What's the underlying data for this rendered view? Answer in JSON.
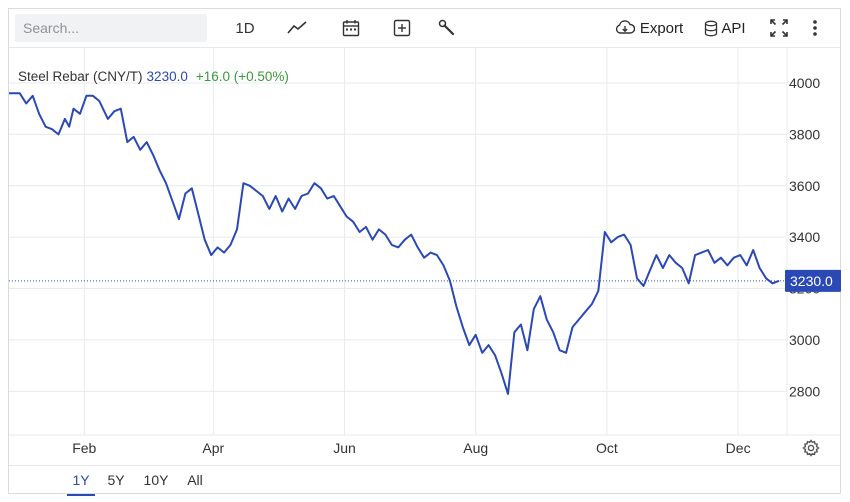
{
  "toolbar": {
    "search_placeholder": "Search...",
    "interval_label": "1D",
    "export_label": "Export",
    "api_label": "API",
    "icons": [
      "line-chart-icon",
      "calendar-icon",
      "plus-square-icon",
      "wrench-icon",
      "cloud-download-icon",
      "database-icon",
      "fullscreen-icon",
      "more-vertical-icon"
    ]
  },
  "legend": {
    "name": "Steel Rebar (CNY/T)",
    "price": "3230.0",
    "change": "+16.0 (+0.50%)"
  },
  "price_tag": "3230.0",
  "ranges": [
    "1Y",
    "5Y",
    "10Y",
    "All"
  ],
  "active_range": "1Y",
  "colors": {
    "line": "#2b49b5",
    "up": "#3a9a3a",
    "grid": "#e8eaee"
  },
  "chart_data": {
    "type": "line",
    "title": "Steel Rebar (CNY/T)",
    "xlabel": "",
    "ylabel": "",
    "grid": true,
    "y_axis_position": "right",
    "ylim": [
      2630,
      4140
    ],
    "yticks": [
      2800,
      3000,
      3200,
      3400,
      3600,
      3800,
      4000
    ],
    "xlim": [
      "2023-12-28",
      "2024-12-20"
    ],
    "xticks": [
      {
        "label": "Feb",
        "date": "2024-02-01"
      },
      {
        "label": "Apr",
        "date": "2024-04-01"
      },
      {
        "label": "Jun",
        "date": "2024-06-01"
      },
      {
        "label": "Aug",
        "date": "2024-08-01"
      },
      {
        "label": "Oct",
        "date": "2024-10-01"
      },
      {
        "label": "Dec",
        "date": "2024-12-01"
      }
    ],
    "last_value": 3230.0,
    "series": [
      {
        "name": "Steel Rebar (CNY/T)",
        "points": [
          [
            "2023-12-28",
            3960
          ],
          [
            "2024-01-02",
            3960
          ],
          [
            "2024-01-05",
            3920
          ],
          [
            "2024-01-08",
            3950
          ],
          [
            "2024-01-11",
            3880
          ],
          [
            "2024-01-14",
            3830
          ],
          [
            "2024-01-17",
            3820
          ],
          [
            "2024-01-20",
            3800
          ],
          [
            "2024-01-23",
            3860
          ],
          [
            "2024-01-25",
            3830
          ],
          [
            "2024-01-27",
            3900
          ],
          [
            "2024-01-30",
            3880
          ],
          [
            "2024-02-02",
            3950
          ],
          [
            "2024-02-05",
            3950
          ],
          [
            "2024-02-08",
            3930
          ],
          [
            "2024-02-12",
            3860
          ],
          [
            "2024-02-15",
            3890
          ],
          [
            "2024-02-18",
            3900
          ],
          [
            "2024-02-21",
            3770
          ],
          [
            "2024-02-24",
            3790
          ],
          [
            "2024-02-27",
            3740
          ],
          [
            "2024-03-01",
            3770
          ],
          [
            "2024-03-04",
            3720
          ],
          [
            "2024-03-07",
            3660
          ],
          [
            "2024-03-10",
            3610
          ],
          [
            "2024-03-13",
            3540
          ],
          [
            "2024-03-16",
            3470
          ],
          [
            "2024-03-19",
            3570
          ],
          [
            "2024-03-22",
            3590
          ],
          [
            "2024-03-25",
            3490
          ],
          [
            "2024-03-28",
            3390
          ],
          [
            "2024-03-31",
            3330
          ],
          [
            "2024-04-03",
            3360
          ],
          [
            "2024-04-06",
            3340
          ],
          [
            "2024-04-09",
            3370
          ],
          [
            "2024-04-12",
            3430
          ],
          [
            "2024-04-15",
            3610
          ],
          [
            "2024-04-18",
            3600
          ],
          [
            "2024-04-21",
            3580
          ],
          [
            "2024-04-24",
            3560
          ],
          [
            "2024-04-27",
            3510
          ],
          [
            "2024-04-30",
            3560
          ],
          [
            "2024-05-03",
            3500
          ],
          [
            "2024-05-06",
            3550
          ],
          [
            "2024-05-09",
            3510
          ],
          [
            "2024-05-12",
            3560
          ],
          [
            "2024-05-15",
            3570
          ],
          [
            "2024-05-18",
            3610
          ],
          [
            "2024-05-21",
            3590
          ],
          [
            "2024-05-24",
            3550
          ],
          [
            "2024-05-27",
            3560
          ],
          [
            "2024-05-30",
            3520
          ],
          [
            "2024-06-02",
            3480
          ],
          [
            "2024-06-05",
            3460
          ],
          [
            "2024-06-08",
            3420
          ],
          [
            "2024-06-11",
            3440
          ],
          [
            "2024-06-14",
            3390
          ],
          [
            "2024-06-17",
            3430
          ],
          [
            "2024-06-20",
            3410
          ],
          [
            "2024-06-23",
            3370
          ],
          [
            "2024-06-26",
            3360
          ],
          [
            "2024-06-29",
            3390
          ],
          [
            "2024-07-02",
            3410
          ],
          [
            "2024-07-05",
            3360
          ],
          [
            "2024-07-08",
            3320
          ],
          [
            "2024-07-11",
            3340
          ],
          [
            "2024-07-14",
            3330
          ],
          [
            "2024-07-17",
            3290
          ],
          [
            "2024-07-20",
            3230
          ],
          [
            "2024-07-23",
            3130
          ],
          [
            "2024-07-26",
            3050
          ],
          [
            "2024-07-29",
            2980
          ],
          [
            "2024-08-01",
            3020
          ],
          [
            "2024-08-04",
            2950
          ],
          [
            "2024-08-07",
            2980
          ],
          [
            "2024-08-10",
            2940
          ],
          [
            "2024-08-13",
            2870
          ],
          [
            "2024-08-16",
            2790
          ],
          [
            "2024-08-19",
            3030
          ],
          [
            "2024-08-22",
            3060
          ],
          [
            "2024-08-25",
            2960
          ],
          [
            "2024-08-28",
            3120
          ],
          [
            "2024-08-31",
            3170
          ],
          [
            "2024-09-03",
            3080
          ],
          [
            "2024-09-06",
            3030
          ],
          [
            "2024-09-09",
            2960
          ],
          [
            "2024-09-12",
            2950
          ],
          [
            "2024-09-15",
            3050
          ],
          [
            "2024-09-18",
            3080
          ],
          [
            "2024-09-21",
            3110
          ],
          [
            "2024-09-24",
            3140
          ],
          [
            "2024-09-27",
            3190
          ],
          [
            "2024-09-30",
            3420
          ],
          [
            "2024-10-03",
            3380
          ],
          [
            "2024-10-06",
            3400
          ],
          [
            "2024-10-09",
            3410
          ],
          [
            "2024-10-12",
            3370
          ],
          [
            "2024-10-15",
            3240
          ],
          [
            "2024-10-18",
            3210
          ],
          [
            "2024-10-21",
            3270
          ],
          [
            "2024-10-24",
            3330
          ],
          [
            "2024-10-27",
            3280
          ],
          [
            "2024-10-30",
            3330
          ],
          [
            "2024-11-02",
            3300
          ],
          [
            "2024-11-05",
            3280
          ],
          [
            "2024-11-08",
            3220
          ],
          [
            "2024-11-11",
            3330
          ],
          [
            "2024-11-14",
            3340
          ],
          [
            "2024-11-17",
            3350
          ],
          [
            "2024-11-20",
            3300
          ],
          [
            "2024-11-23",
            3320
          ],
          [
            "2024-11-26",
            3290
          ],
          [
            "2024-11-29",
            3320
          ],
          [
            "2024-12-02",
            3330
          ],
          [
            "2024-12-05",
            3290
          ],
          [
            "2024-12-08",
            3350
          ],
          [
            "2024-12-11",
            3280
          ],
          [
            "2024-12-14",
            3240
          ],
          [
            "2024-12-17",
            3220
          ],
          [
            "2024-12-20",
            3230
          ]
        ]
      }
    ]
  }
}
